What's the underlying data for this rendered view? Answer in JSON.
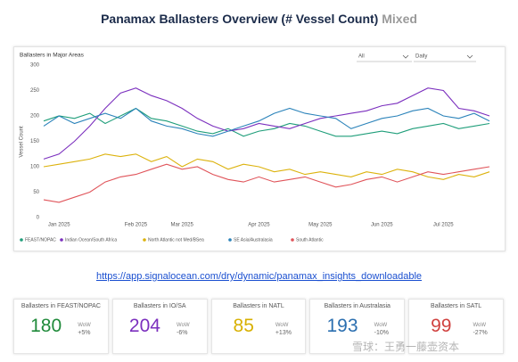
{
  "header": {
    "title": "Panamax Ballasters Overview (# Vessel Count)",
    "subtitle": "Mixed"
  },
  "chart_data": {
    "type": "line",
    "title": "Ballasters in Major Areas",
    "y_label": "Vessel Count",
    "filters": [
      "All",
      "Daily"
    ],
    "categories": [
      null,
      "Jan 2025",
      null,
      null,
      null,
      null,
      "Feb 2025",
      null,
      null,
      "Mar 2025",
      null,
      null,
      null,
      null,
      "Apr 2025",
      null,
      null,
      null,
      "May 2025",
      null,
      null,
      null,
      "Jun 2025",
      null,
      null,
      null,
      "Jul 2025",
      null,
      null,
      null
    ],
    "series": [
      {
        "name": "FEAST/NOPAC",
        "color": "#1f9e7a",
        "values": [
          190,
          200,
          195,
          205,
          185,
          200,
          215,
          195,
          190,
          180,
          170,
          165,
          175,
          160,
          170,
          175,
          185,
          180,
          170,
          160,
          160,
          165,
          170,
          165,
          175,
          180,
          185,
          175,
          180,
          185
        ]
      },
      {
        "name": "Indian Ocean/South Africa",
        "color": "#7b2fbe",
        "values": [
          115,
          125,
          150,
          180,
          215,
          245,
          255,
          240,
          230,
          215,
          195,
          180,
          170,
          175,
          185,
          180,
          175,
          185,
          195,
          200,
          205,
          210,
          220,
          225,
          240,
          255,
          250,
          215,
          210,
          200
        ]
      },
      {
        "name": "North Atlantic not Med/BSea",
        "color": "#dcb20c",
        "values": [
          100,
          105,
          110,
          115,
          125,
          120,
          125,
          110,
          120,
          100,
          115,
          110,
          95,
          105,
          100,
          90,
          95,
          85,
          90,
          85,
          80,
          90,
          85,
          95,
          90,
          80,
          75,
          85,
          80,
          90
        ]
      },
      {
        "name": "SE Asia/Australasia",
        "color": "#2b83ba",
        "values": [
          180,
          200,
          185,
          195,
          205,
          195,
          215,
          190,
          180,
          175,
          165,
          160,
          170,
          180,
          190,
          205,
          215,
          205,
          200,
          195,
          175,
          185,
          195,
          200,
          210,
          215,
          200,
          195,
          205,
          190
        ]
      },
      {
        "name": "South Atlantic",
        "color": "#e0545a",
        "values": [
          35,
          30,
          40,
          50,
          70,
          80,
          85,
          95,
          105,
          95,
          100,
          85,
          75,
          70,
          80,
          70,
          75,
          80,
          70,
          60,
          65,
          75,
          80,
          70,
          80,
          90,
          85,
          90,
          95,
          100
        ]
      }
    ],
    "ylim": [
      0,
      300
    ],
    "yticks": [
      0,
      50,
      100,
      150,
      200,
      250,
      300
    ],
    "grid": false,
    "legend": "bottom"
  },
  "link": "https://app.signalocean.com/dry/dynamic/panamax_insights_downloadable",
  "cards": [
    {
      "title": "Ballasters in FEAST/NOPAC",
      "value": 180,
      "wow": "WoW",
      "change": "+5%",
      "color": "#1f8a3a"
    },
    {
      "title": "Ballasters in IO/SA",
      "value": 204,
      "wow": "WoW",
      "change": "-6%",
      "color": "#7b2fbe"
    },
    {
      "title": "Ballasters in NATL",
      "value": 85,
      "wow": "WoW",
      "change": "+13%",
      "color": "#d8b000"
    },
    {
      "title": "Ballasters in Australasia",
      "value": 193,
      "wow": "WoW",
      "change": "-10%",
      "color": "#2b6fb0"
    },
    {
      "title": "Ballasters in SATL",
      "value": 99,
      "wow": "WoW",
      "change": "-27%",
      "color": "#d0413f"
    }
  ],
  "watermark": "雪球：王勇一藤壶资本"
}
